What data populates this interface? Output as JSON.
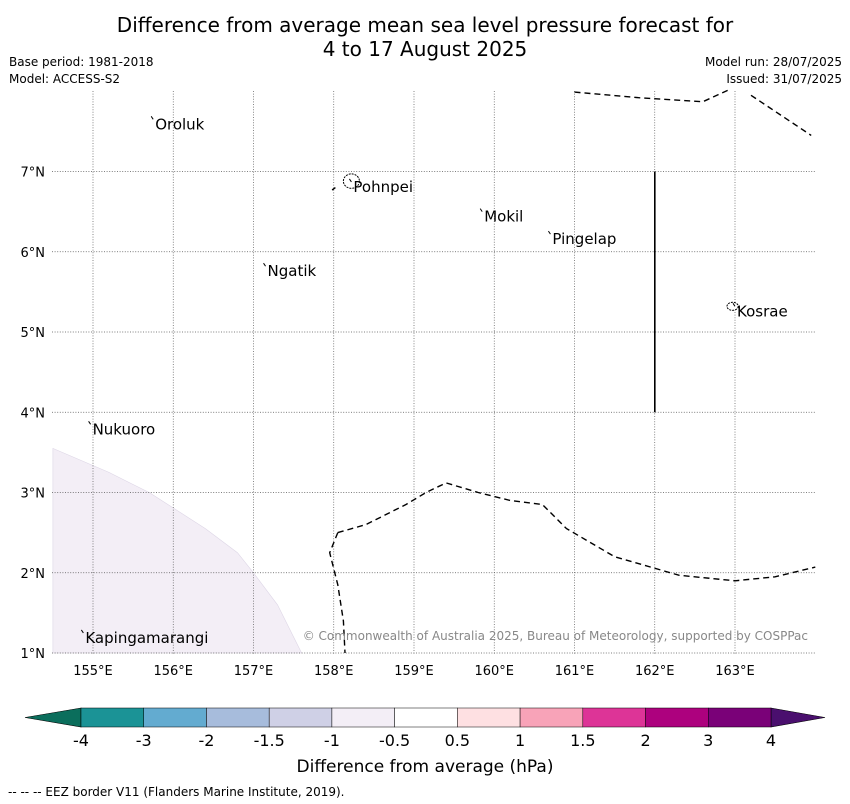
{
  "title_line1": "Difference from average mean sea level pressure forecast for",
  "title_line2": "4 to 17 August 2025",
  "meta": {
    "base_period": "Base period: 1981-2018",
    "model": "Model: ACCESS-S2",
    "model_run": "Model run: 28/07/2025",
    "issued": "Issued: 31/07/2025"
  },
  "map": {
    "lon_range": [
      154.5,
      164.0
    ],
    "lat_range": [
      1.0,
      8.0
    ],
    "lon_ticks": [
      {
        "value": 155,
        "label": "155°E"
      },
      {
        "value": 156,
        "label": "156°E"
      },
      {
        "value": 157,
        "label": "157°E"
      },
      {
        "value": 158,
        "label": "158°E"
      },
      {
        "value": 159,
        "label": "159°E"
      },
      {
        "value": 160,
        "label": "160°E"
      },
      {
        "value": 161,
        "label": "161°E"
      },
      {
        "value": 162,
        "label": "162°E"
      },
      {
        "value": 163,
        "label": "163°E"
      }
    ],
    "lat_ticks": [
      {
        "value": 7,
        "label": "7°N"
      },
      {
        "value": 6,
        "label": "6°N"
      },
      {
        "value": 5,
        "label": "5°N"
      },
      {
        "value": 4,
        "label": "4°N"
      },
      {
        "value": 3,
        "label": "3°N"
      },
      {
        "value": 2,
        "label": "2°N"
      },
      {
        "value": 1,
        "label": "1°N"
      }
    ],
    "grid": true,
    "places": [
      {
        "name": "Oroluk",
        "lon": 155.75,
        "lat": 7.65
      },
      {
        "name": "Pohnpei",
        "lon": 158.22,
        "lat": 6.87
      },
      {
        "name": "Mokil",
        "lon": 159.85,
        "lat": 6.5
      },
      {
        "name": "Pingelap",
        "lon": 160.7,
        "lat": 6.22
      },
      {
        "name": "Ngatik",
        "lon": 157.15,
        "lat": 5.82
      },
      {
        "name": "Kosrae",
        "lon": 163.0,
        "lat": 5.32
      },
      {
        "name": "Nukuoro",
        "lon": 154.97,
        "lat": 3.85
      },
      {
        "name": "Kapingamarangi",
        "lon": 154.88,
        "lat": 1.25
      }
    ],
    "anomaly_region": {
      "color": "#f3eef6",
      "polygon": [
        [
          154.5,
          3.55
        ],
        [
          155.2,
          3.25
        ],
        [
          155.7,
          3.0
        ],
        [
          156.4,
          2.55
        ],
        [
          156.8,
          2.25
        ],
        [
          157.0,
          2.0
        ],
        [
          157.3,
          1.6
        ],
        [
          157.6,
          1.0
        ],
        [
          154.5,
          1.0
        ]
      ]
    },
    "eez_lines": [
      [
        [
          158.05,
          2.5
        ],
        [
          157.95,
          2.25
        ],
        [
          158.05,
          1.85
        ],
        [
          158.12,
          1.4
        ],
        [
          158.14,
          1.0
        ]
      ],
      [
        [
          158.05,
          2.5
        ],
        [
          158.4,
          2.6
        ],
        [
          158.9,
          2.85
        ],
        [
          159.15,
          3.0
        ],
        [
          159.4,
          3.12
        ],
        [
          159.8,
          3.0
        ],
        [
          160.2,
          2.9
        ],
        [
          160.6,
          2.85
        ],
        [
          160.9,
          2.55
        ],
        [
          161.5,
          2.2
        ],
        [
          162.3,
          1.97
        ],
        [
          163.0,
          1.9
        ],
        [
          163.5,
          1.95
        ],
        [
          164.0,
          2.07
        ]
      ],
      [
        [
          161.0,
          7.99
        ],
        [
          161.8,
          7.92
        ],
        [
          162.6,
          7.87
        ],
        [
          162.95,
          8.03
        ]
      ],
      [
        [
          163.2,
          7.95
        ],
        [
          163.95,
          7.45
        ]
      ],
      [
        [
          157.98,
          6.77
        ],
        [
          158.02,
          6.8
        ]
      ]
    ],
    "boundary_line": [
      [
        162.0,
        7.0
      ],
      [
        162.0,
        4.0
      ]
    ],
    "islands": [
      {
        "lon": 158.22,
        "lat": 6.88,
        "rx": 0.1,
        "ry": 0.09
      },
      {
        "lon": 162.97,
        "lat": 5.32,
        "rx": 0.07,
        "ry": 0.05
      }
    ],
    "copyright": "© Commonwealth of Australia 2025, Bureau of Meteorology, supported by COSPPac"
  },
  "colorbar": {
    "label": "Difference from average (hPa)",
    "under_color": "#0b6e5c",
    "over_color": "#4a0f6e",
    "bins": [
      {
        "color": "#1b9396"
      },
      {
        "color": "#63abd0"
      },
      {
        "color": "#a7bcdc"
      },
      {
        "color": "#cfd0e6"
      },
      {
        "color": "#f3eef6"
      },
      {
        "color": "#ffffff"
      },
      {
        "color": "#fee0e2"
      },
      {
        "color": "#f8a3b8"
      },
      {
        "color": "#dd3497"
      },
      {
        "color": "#ad017e"
      },
      {
        "color": "#7a0178"
      }
    ],
    "tick_labels": [
      "-4",
      "-3",
      "-2",
      "-1.5",
      "-1",
      "-0.5",
      "0.5",
      "1",
      "1.5",
      "2",
      "3",
      "4"
    ]
  },
  "footer": "--  --  -- EEZ border V11 (Flanders Marine Institute, 2019)."
}
